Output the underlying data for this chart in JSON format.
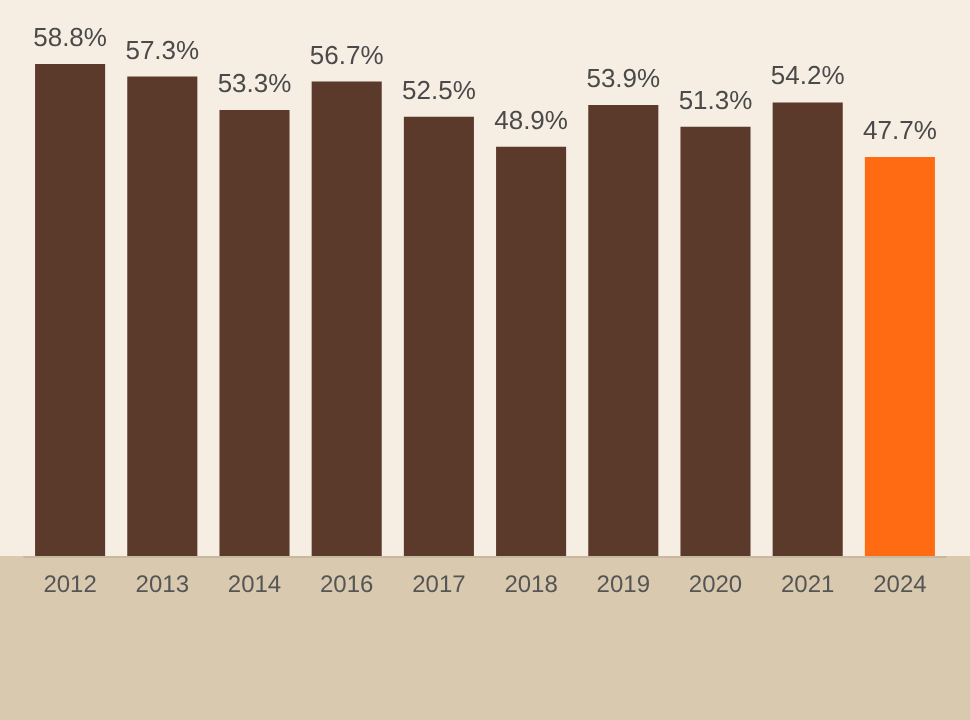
{
  "chart_data": {
    "type": "bar",
    "categories": [
      "2012",
      "2013",
      "2014",
      "2016",
      "2017",
      "2018",
      "2019",
      "2020",
      "2021",
      "2024"
    ],
    "values": [
      58.8,
      57.3,
      53.3,
      56.7,
      52.5,
      48.9,
      53.9,
      51.3,
      54.2,
      47.7
    ],
    "value_labels": [
      "58.8%",
      "57.3%",
      "53.3%",
      "56.7%",
      "52.5%",
      "48.9%",
      "53.9%",
      "51.3%",
      "54.2%",
      "47.7%"
    ],
    "colors": [
      "#5b3a2c",
      "#5b3a2c",
      "#5b3a2c",
      "#5b3a2c",
      "#5b3a2c",
      "#5b3a2c",
      "#5b3a2c",
      "#5b3a2c",
      "#5b3a2c",
      "#ff6b12"
    ],
    "tick_labels": "x"
  }
}
